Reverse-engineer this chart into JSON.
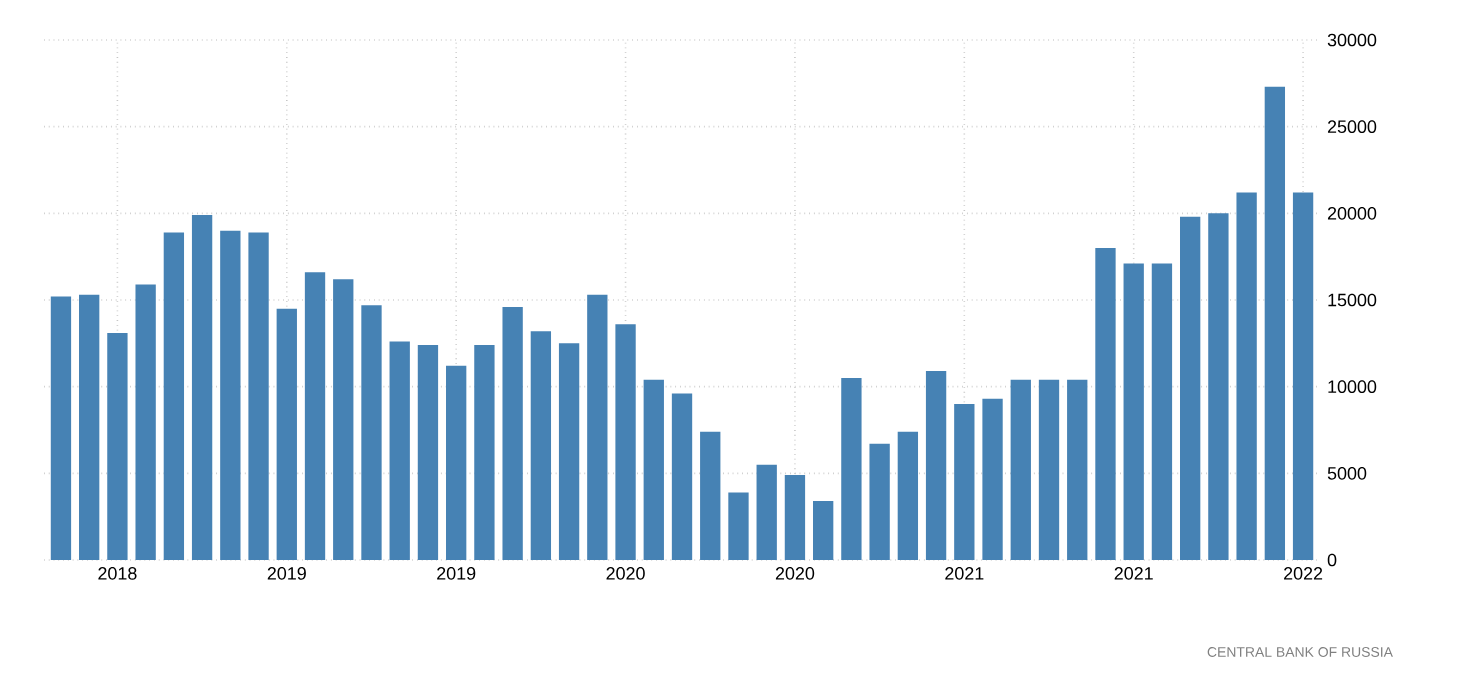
{
  "chart_data": {
    "type": "bar",
    "categories": [
      null,
      null,
      "2018",
      null,
      null,
      null,
      null,
      null,
      "2019",
      null,
      null,
      null,
      null,
      null,
      "2019",
      null,
      null,
      null,
      null,
      null,
      "2020",
      null,
      null,
      null,
      null,
      null,
      "2020",
      null,
      null,
      null,
      null,
      null,
      "2021",
      null,
      null,
      null,
      null,
      null,
      "2021",
      null,
      null,
      null,
      null,
      null,
      "2022"
    ],
    "values": [
      15200,
      15300,
      13100,
      15900,
      18900,
      19900,
      19000,
      18900,
      14500,
      16600,
      16200,
      14700,
      12600,
      12400,
      11200,
      12400,
      14600,
      13200,
      12500,
      15300,
      13600,
      10400,
      9600,
      7400,
      3900,
      5500,
      4900,
      3400,
      10500,
      6700,
      7400,
      10900,
      9000,
      9300,
      10400,
      10400,
      10400,
      18000,
      17100,
      17100,
      19800,
      20000,
      21200,
      27300,
      21200
    ],
    "color": "#4682b4",
    "ylim": [
      0,
      30000
    ],
    "yticks": [
      0,
      5000,
      10000,
      15000,
      20000,
      25000,
      30000
    ],
    "grid": true,
    "annotations": [
      "CENTRAL BANK OF RUSSIA"
    ]
  }
}
